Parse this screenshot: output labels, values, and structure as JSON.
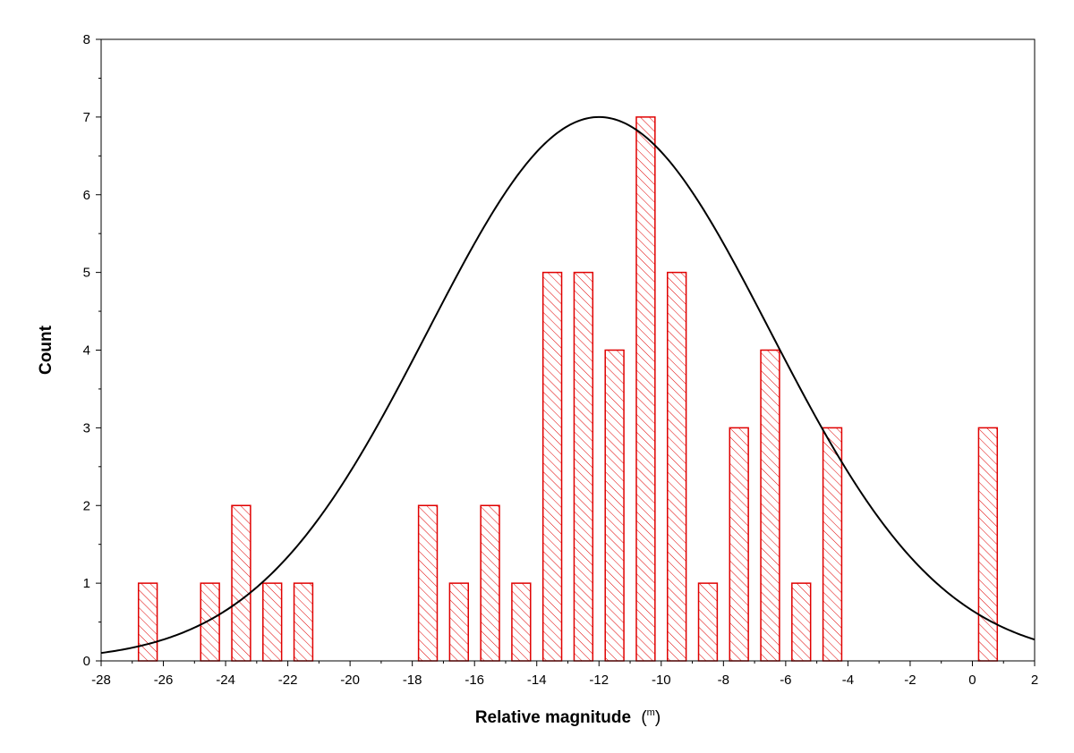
{
  "chart_data": {
    "type": "bar",
    "title": "",
    "xlabel": "Relative magnitude",
    "xlabel_unit": "m",
    "ylabel": "Count",
    "xlim": [
      -28,
      2
    ],
    "ylim": [
      0,
      8
    ],
    "x_ticks": [
      -28,
      -26,
      -24,
      -22,
      -20,
      -18,
      -16,
      -14,
      -12,
      -10,
      -8,
      -6,
      -4,
      -2,
      0,
      2
    ],
    "y_ticks": [
      0,
      1,
      2,
      3,
      4,
      5,
      6,
      7,
      8
    ],
    "grid": false,
    "bar_color": "#e00000",
    "bar_fill": "hatched",
    "bar_width": 0.6,
    "bars": [
      {
        "x": -26.5,
        "count": 1
      },
      {
        "x": -24.5,
        "count": 1
      },
      {
        "x": -23.5,
        "count": 2
      },
      {
        "x": -22.5,
        "count": 1
      },
      {
        "x": -21.5,
        "count": 1
      },
      {
        "x": -17.5,
        "count": 2
      },
      {
        "x": -16.5,
        "count": 1
      },
      {
        "x": -15.5,
        "count": 2
      },
      {
        "x": -14.5,
        "count": 1
      },
      {
        "x": -13.5,
        "count": 5
      },
      {
        "x": -12.5,
        "count": 5
      },
      {
        "x": -11.5,
        "count": 4
      },
      {
        "x": -10.5,
        "count": 7
      },
      {
        "x": -9.5,
        "count": 5
      },
      {
        "x": -8.5,
        "count": 1
      },
      {
        "x": -7.5,
        "count": 3
      },
      {
        "x": -6.5,
        "count": 4
      },
      {
        "x": -5.5,
        "count": 1
      },
      {
        "x": -4.5,
        "count": 3
      },
      {
        "x": 0.5,
        "count": 3
      }
    ],
    "fit_curve": {
      "type": "gaussian",
      "color": "#000000",
      "peak": 7.0,
      "mean": -12.0,
      "sigma": 5.5
    }
  }
}
